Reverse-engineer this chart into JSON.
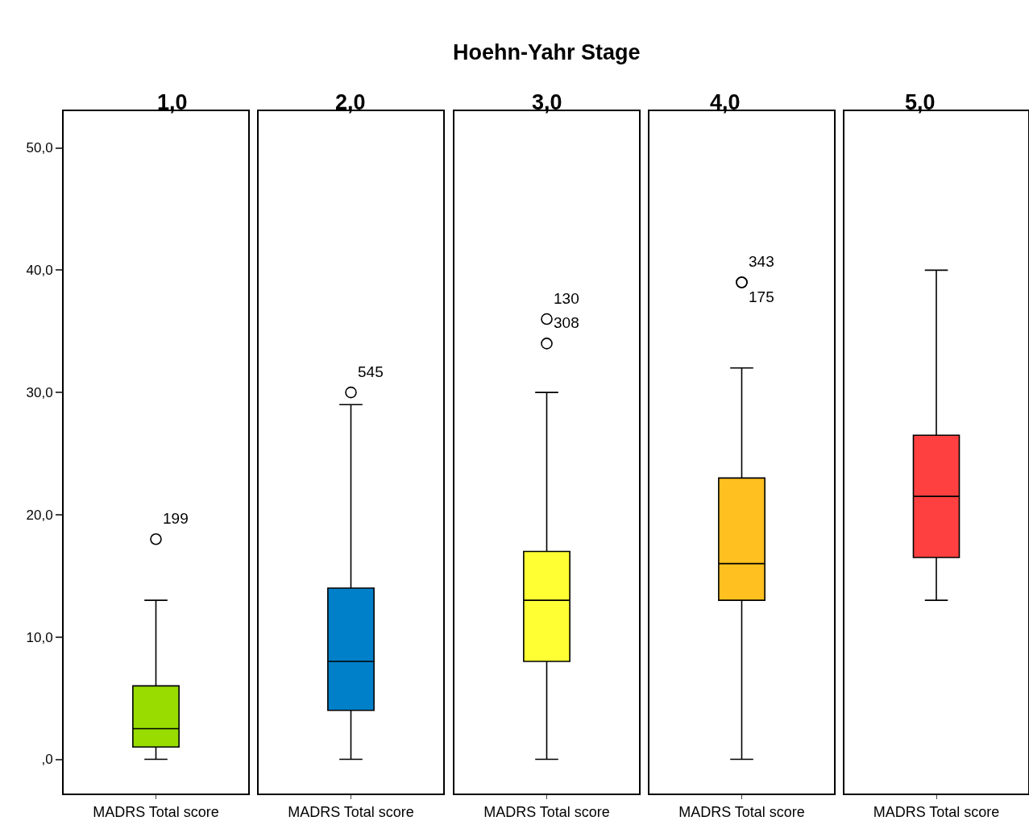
{
  "chart_data": [
    {
      "type": "box",
      "title": "1,0",
      "annotations": [
        "Hoehn-Yahr Stage",
        "199"
      ],
      "categories": [
        "MADRS Total score"
      ],
      "colors": [
        "#99dd00"
      ],
      "boxes": [
        {
          "low": 0,
          "q1": 1,
          "median": 2.5,
          "q3": 6,
          "high": 13,
          "outliers": [
            18
          ]
        }
      ],
      "ylim": [
        -2.8,
        53
      ],
      "yticks": [
        {
          "value": 0,
          "label": ",0"
        },
        {
          "value": 10,
          "label": "10,0"
        },
        {
          "value": 20,
          "label": "20,0"
        },
        {
          "value": 30,
          "label": "30,0"
        },
        {
          "value": 40,
          "label": "40,0"
        },
        {
          "value": 50,
          "label": "50,0"
        }
      ]
    },
    {
      "type": "box",
      "title": "2,0",
      "annotations": [
        "545"
      ],
      "categories": [
        "MADRS Total score"
      ],
      "colors": [
        "#0080c8"
      ],
      "boxes": [
        {
          "low": 0,
          "q1": 4,
          "median": 8,
          "q3": 14,
          "high": 29,
          "outliers": [
            30
          ]
        }
      ],
      "ylim": [
        -2.8,
        53
      ],
      "tick_labels": "x"
    },
    {
      "type": "box",
      "title": "3,0",
      "annotations": [
        "130",
        "308"
      ],
      "categories": [
        "MADRS Total score"
      ],
      "colors": [
        "#ffff33"
      ],
      "boxes": [
        {
          "low": 0,
          "q1": 8,
          "median": 13,
          "q3": 17,
          "high": 30,
          "outliers": [
            36,
            34
          ]
        }
      ],
      "ylim": [
        -2.8,
        53
      ],
      "tick_labels": "x"
    },
    {
      "type": "box",
      "title": "4,0",
      "annotations": [
        "343",
        "175"
      ],
      "categories": [
        "MADRS Total score"
      ],
      "colors": [
        "#ffc020"
      ],
      "boxes": [
        {
          "low": 0,
          "q1": 13,
          "median": 16,
          "q3": 23,
          "high": 32,
          "outliers": [
            39,
            39
          ]
        }
      ],
      "ylim": [
        -2.8,
        53
      ],
      "tick_labels": "x"
    },
    {
      "type": "box",
      "title": "5,0",
      "categories": [
        "MADRS Total score"
      ],
      "colors": [
        "#ff4040"
      ],
      "boxes": [
        {
          "low": 13,
          "q1": 16.5,
          "median": 21.5,
          "q3": 26.5,
          "high": 40
        }
      ],
      "ylim": [
        -2.8,
        53
      ],
      "tick_labels": "x"
    }
  ]
}
